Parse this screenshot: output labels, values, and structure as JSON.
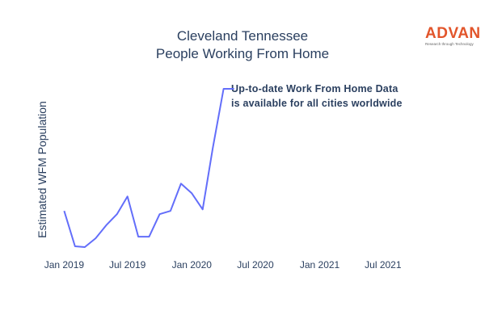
{
  "chart_data": {
    "type": "line",
    "title_lines": [
      "Cleveland Tennessee",
      "People Working From Home"
    ],
    "ylabel": "Estimated WFM Population",
    "annotation_lines": [
      "Up-to-date Work From Home Data",
      "is available for all cities worldwide"
    ],
    "x_ticks": [
      "Jan 2019",
      "Jul 2019",
      "Jan 2020",
      "Jul 2020",
      "Jan 2021",
      "Jul 2021"
    ],
    "xlim": [
      "2018-12-01",
      "2021-12-01"
    ],
    "ylim": [
      0,
      100
    ],
    "y_grid": false,
    "series": [
      {
        "color": "#636efa",
        "x": [
          "2019-01-01",
          "2019-02-01",
          "2019-03-01",
          "2019-04-01",
          "2019-05-01",
          "2019-06-01",
          "2019-07-01",
          "2019-08-01",
          "2019-09-01",
          "2019-10-01",
          "2019-11-01",
          "2019-12-01",
          "2020-01-01",
          "2020-02-01",
          "2020-03-01",
          "2020-04-01",
          "2020-05-01"
        ],
        "values": [
          24,
          2,
          1.5,
          7,
          15,
          22,
          33,
          8,
          8,
          22,
          24,
          41,
          35,
          25,
          63,
          100,
          100
        ]
      }
    ]
  },
  "logo": {
    "word": "ADVAN",
    "tagline": "Research through Technology"
  }
}
